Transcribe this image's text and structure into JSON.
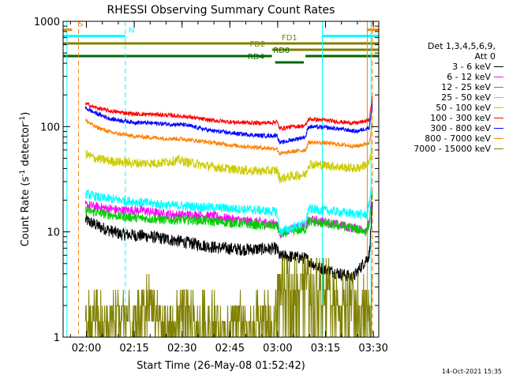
{
  "chart_data": {
    "type": "line",
    "title": "RHESSI Observing Summary Count Rates",
    "xlabel": "Start Time (26-May-08 01:52:42)",
    "ylabel_main": "Count Rate (s",
    "ylabel_sup1": "-1",
    "ylabel_mid": " detector",
    "ylabel_sup2": "-1",
    "ylabel_end": ")",
    "y_scale": "log",
    "ylim": [
      1,
      1000
    ],
    "xlim_minutes_since_start": [
      0,
      99
    ],
    "x_tick_labels": [
      "02:00",
      "02:15",
      "02:30",
      "02:45",
      "03:00",
      "03:15",
      "03:30"
    ],
    "x_tick_minutes": [
      7.3,
      22.3,
      37.3,
      52.3,
      67.3,
      82.3,
      97.3
    ],
    "y_tick_labels": [
      "1",
      "10",
      "100",
      "1000"
    ],
    "y_tick_values": [
      1,
      10,
      100,
      1000
    ],
    "legend_header": [
      "Det 1,3,4,5,6,9,",
      "Att 0"
    ],
    "legend_placement": "right",
    "series": [
      {
        "name": "3 - 6 keV",
        "color": "#000000",
        "band": "low",
        "points": [
          [
            7,
            13
          ],
          [
            12,
            11
          ],
          [
            18,
            9.5
          ],
          [
            25,
            9.2
          ],
          [
            32,
            8.6
          ],
          [
            40,
            7.8
          ],
          [
            48,
            7.1
          ],
          [
            56,
            6.8
          ],
          [
            64,
            6.9
          ],
          [
            67,
            6.9
          ],
          [
            68,
            5.8
          ],
          [
            70,
            5.9
          ],
          [
            76,
            5.6
          ],
          [
            80,
            4.6
          ],
          [
            87,
            4.0
          ],
          [
            91,
            3.7
          ],
          [
            96,
            6.0
          ],
          [
            97,
            17
          ]
        ]
      },
      {
        "name": "6 - 12 keV",
        "color": "#ff00ff",
        "band": "mid",
        "points": [
          [
            7,
            18
          ],
          [
            12,
            17
          ],
          [
            18,
            16
          ],
          [
            25,
            16
          ],
          [
            30,
            15
          ],
          [
            36,
            14.5
          ],
          [
            42,
            14.5
          ],
          [
            48,
            14
          ],
          [
            54,
            13
          ],
          [
            60,
            12.5
          ],
          [
            67,
            12
          ],
          [
            68,
            9.5
          ],
          [
            72,
            11
          ],
          [
            76,
            11.2
          ],
          [
            77,
            13
          ],
          [
            82,
            12.5
          ],
          [
            90,
            11
          ],
          [
            95,
            10.5
          ],
          [
            96,
            12
          ],
          [
            97,
            24
          ]
        ]
      },
      {
        "name": "12 - 25 keV",
        "color": "#00cc00",
        "band": "mid",
        "points": [
          [
            7,
            16
          ],
          [
            12,
            15
          ],
          [
            18,
            14
          ],
          [
            25,
            13.5
          ],
          [
            32,
            13
          ],
          [
            40,
            13
          ],
          [
            48,
            12.5
          ],
          [
            56,
            12
          ],
          [
            62,
            11.5
          ],
          [
            67,
            11.5
          ],
          [
            68,
            9.6
          ],
          [
            72,
            10.2
          ],
          [
            76,
            10.6
          ],
          [
            77,
            12.5
          ],
          [
            82,
            12
          ],
          [
            90,
            11
          ],
          [
            95,
            10
          ],
          [
            96,
            12
          ],
          [
            97,
            22
          ]
        ]
      },
      {
        "name": "25 - 50 keV",
        "color": "#00ffff",
        "band": "mid",
        "points": [
          [
            7,
            23
          ],
          [
            12,
            21
          ],
          [
            18,
            20
          ],
          [
            25,
            19
          ],
          [
            32,
            18
          ],
          [
            40,
            17.5
          ],
          [
            48,
            17
          ],
          [
            56,
            16.5
          ],
          [
            62,
            16
          ],
          [
            67,
            15.5
          ],
          [
            68,
            10
          ],
          [
            72,
            11
          ],
          [
            76,
            12
          ],
          [
            77,
            16.5
          ],
          [
            82,
            16
          ],
          [
            90,
            15
          ],
          [
            95,
            14.5
          ],
          [
            96,
            18
          ],
          [
            97,
            35
          ]
        ]
      },
      {
        "name": "50 - 100 keV",
        "color": "#cccc00",
        "band": "mid",
        "points": [
          [
            7,
            55
          ],
          [
            10,
            50
          ],
          [
            15,
            47
          ],
          [
            22,
            45
          ],
          [
            30,
            45
          ],
          [
            36,
            48
          ],
          [
            42,
            44
          ],
          [
            48,
            41
          ],
          [
            54,
            39
          ],
          [
            60,
            38
          ],
          [
            66,
            38
          ],
          [
            67,
            39
          ],
          [
            68,
            32
          ],
          [
            72,
            34
          ],
          [
            76,
            35
          ],
          [
            77,
            44
          ],
          [
            82,
            43
          ],
          [
            88,
            41
          ],
          [
            92,
            40
          ],
          [
            96,
            45
          ],
          [
            97,
            60
          ]
        ]
      },
      {
        "name": "100 - 300 keV",
        "color": "#ff0000",
        "band": "high",
        "points": [
          [
            7,
            165
          ],
          [
            10,
            152
          ],
          [
            15,
            140
          ],
          [
            22,
            132
          ],
          [
            30,
            130
          ],
          [
            38,
            125
          ],
          [
            46,
            115
          ],
          [
            54,
            110
          ],
          [
            62,
            108
          ],
          [
            66,
            110
          ],
          [
            67,
            112
          ],
          [
            68,
            96
          ],
          [
            72,
            100
          ],
          [
            76,
            102
          ],
          [
            77,
            118
          ],
          [
            82,
            115
          ],
          [
            88,
            110
          ],
          [
            92,
            108
          ],
          [
            96,
            115
          ],
          [
            97,
            190
          ]
        ]
      },
      {
        "name": "300 - 800 keV",
        "color": "#0000ff",
        "band": "high",
        "points": [
          [
            7,
            150
          ],
          [
            10,
            135
          ],
          [
            15,
            118
          ],
          [
            22,
            110
          ],
          [
            30,
            107
          ],
          [
            38,
            104
          ],
          [
            46,
            92
          ],
          [
            54,
            86
          ],
          [
            62,
            82
          ],
          [
            66,
            82
          ],
          [
            67,
            84
          ],
          [
            68,
            70
          ],
          [
            72,
            75
          ],
          [
            76,
            80
          ],
          [
            77,
            100
          ],
          [
            82,
            98
          ],
          [
            88,
            94
          ],
          [
            92,
            90
          ],
          [
            96,
            98
          ],
          [
            97,
            160
          ]
        ]
      },
      {
        "name": "800 - 7000 keV",
        "color": "#ff8000",
        "band": "high",
        "points": [
          [
            7,
            115
          ],
          [
            10,
            100
          ],
          [
            15,
            88
          ],
          [
            22,
            81
          ],
          [
            30,
            78
          ],
          [
            38,
            76
          ],
          [
            46,
            71
          ],
          [
            54,
            66
          ],
          [
            62,
            63
          ],
          [
            66,
            62
          ],
          [
            67,
            62
          ],
          [
            68,
            55
          ],
          [
            72,
            58
          ],
          [
            76,
            60
          ],
          [
            77,
            71
          ],
          [
            82,
            70
          ],
          [
            88,
            67
          ],
          [
            92,
            65
          ],
          [
            96,
            70
          ],
          [
            97,
            110
          ]
        ]
      },
      {
        "name": "7000 - 15000 keV",
        "color": "#808000",
        "band": "bottom",
        "points": [
          [
            7,
            1.4
          ],
          [
            10,
            1.8
          ],
          [
            14,
            1.3
          ],
          [
            18,
            2.0
          ],
          [
            22,
            1.2
          ],
          [
            26,
            2.4
          ],
          [
            30,
            1.6
          ],
          [
            34,
            1.2
          ],
          [
            38,
            2.0
          ],
          [
            42,
            1.3
          ],
          [
            46,
            1.8
          ],
          [
            50,
            1.2
          ],
          [
            54,
            1.6
          ],
          [
            58,
            1.3
          ],
          [
            62,
            1.8
          ],
          [
            66,
            1.3
          ],
          [
            67,
            3.0
          ],
          [
            70,
            3.6
          ],
          [
            74,
            3.8
          ],
          [
            78,
            3.2
          ],
          [
            82,
            3.8
          ],
          [
            86,
            2.6
          ],
          [
            90,
            2.4
          ],
          [
            94,
            2.2
          ],
          [
            96,
            2.0
          ],
          [
            97,
            2.6
          ]
        ]
      }
    ],
    "flags": [
      {
        "label": "S",
        "color": "#ff8000",
        "x_start": 0,
        "x_end": 2.8,
        "y_log10": 2.92
      },
      {
        "label": "S",
        "color": "#ff8000",
        "x_start": 95.4,
        "x_end": 99,
        "y_log10": 2.92,
        "hide_label": true
      },
      {
        "label": "N",
        "color": "#00ffff",
        "x_start": 0,
        "x_end": 19.5,
        "y_log10": 2.86
      },
      {
        "label": "N",
        "color": "#00ffff",
        "x_start": 81.3,
        "x_end": 99,
        "y_log10": 2.86,
        "hide_label": true
      },
      {
        "label": "FD1",
        "color": "#808000",
        "x_start": 0,
        "x_end": 99,
        "y_log10": 2.79
      },
      {
        "label": "FD2",
        "color": "#808000",
        "x_start": 65.5,
        "x_end": 99,
        "y_log10": 2.73
      },
      {
        "label": "RD0",
        "color": "#006600",
        "x_start": 0,
        "x_end": 99,
        "y_log10": 2.67,
        "gap": [
          65.5,
          76.0
        ]
      },
      {
        "label": "RD4",
        "color": "#006600",
        "x_start": 66.5,
        "x_end": 75.5,
        "y_log10": 2.61
      }
    ],
    "vlines": [
      {
        "x": 1.2,
        "color": "#00ffff",
        "style": "solid"
      },
      {
        "x": 4.8,
        "color": "#ff8000",
        "style": "dashed"
      },
      {
        "x": 19.5,
        "color": "#00ffff",
        "style": "dashed"
      },
      {
        "x": 81.3,
        "color": "#00ffff",
        "style": "solid"
      },
      {
        "x": 95.4,
        "color": "#ff8000",
        "style": "solid"
      },
      {
        "x": 96.6,
        "color": "#00ffff",
        "style": "solid"
      },
      {
        "x": 97.0,
        "color": "#ff8000",
        "style": "dashed"
      }
    ]
  },
  "timestamp": "14-Oct-2021 15:35"
}
